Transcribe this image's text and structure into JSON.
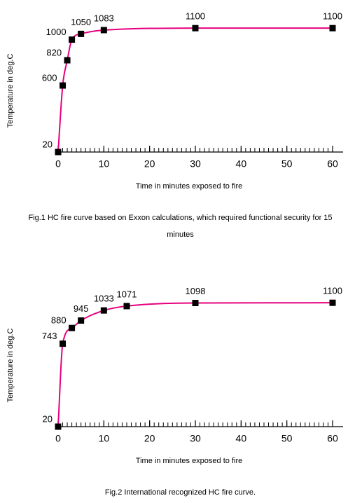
{
  "chart_data": [
    {
      "type": "line",
      "title": "Fig.1 HC fire curve based on Exxon calculations, which required functional security for 15 minutes",
      "x_label": "Time in minutes exposed to fire",
      "y_label": "Temperature in deg.C",
      "x": [
        0,
        1,
        2,
        3,
        5,
        10,
        30,
        60
      ],
      "values": [
        20,
        600,
        820,
        1000,
        1050,
        1083,
        1100,
        1100
      ],
      "color": "#e6007e",
      "xlim": [
        0,
        60
      ],
      "xticks": [
        0,
        10,
        20,
        30,
        40,
        50,
        60
      ],
      "minor_tick_interval": 1,
      "ylim": [
        20,
        1150
      ]
    },
    {
      "type": "line",
      "title": "Fig.2 International recognized HC fire curve.",
      "x_label": "Time in minutes exposed to fire",
      "y_label": "Temperature in deg.C",
      "x": [
        0,
        1,
        3,
        5,
        10,
        15,
        30,
        60
      ],
      "values": [
        20,
        743,
        880,
        945,
        1033,
        1071,
        1098,
        1100
      ],
      "color": "#e6007e",
      "xlim": [
        0,
        60
      ],
      "xticks": [
        0,
        10,
        20,
        30,
        40,
        50,
        60
      ],
      "minor_tick_interval": 1,
      "ylim": [
        20,
        1150
      ]
    }
  ]
}
